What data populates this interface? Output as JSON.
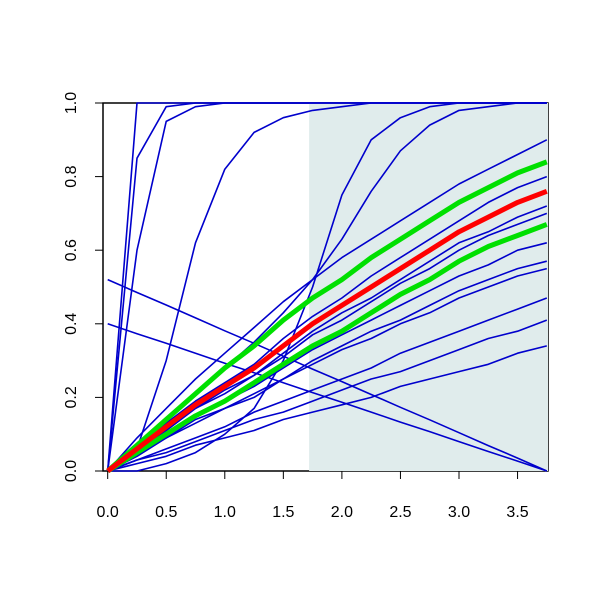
{
  "chart_data": {
    "type": "line",
    "x": [
      0,
      0.25,
      0.5,
      0.75,
      1,
      1.25,
      1.5,
      1.75,
      2,
      2.25,
      2.5,
      2.75,
      3,
      3.25,
      3.5,
      3.75
    ],
    "xlim": [
      -0.04,
      3.76
    ],
    "ylim": [
      0,
      1
    ],
    "xticks": [
      {
        "value": 0,
        "label": "0.0"
      },
      {
        "value": 0.5,
        "label": "0.5"
      },
      {
        "value": 1,
        "label": "1.0"
      },
      {
        "value": 1.5,
        "label": "1.5"
      },
      {
        "value": 2,
        "label": "2.0"
      },
      {
        "value": 2.5,
        "label": "2.5"
      },
      {
        "value": 3,
        "label": "3.0"
      },
      {
        "value": 3.5,
        "label": "3.5"
      }
    ],
    "yticks": [
      {
        "value": 0,
        "label": "0.0"
      },
      {
        "value": 0.2,
        "label": "0.2"
      },
      {
        "value": 0.4,
        "label": "0.4"
      },
      {
        "value": 0.6,
        "label": "0.6"
      },
      {
        "value": 0.8,
        "label": "0.8"
      },
      {
        "value": 1,
        "label": "1.0"
      }
    ],
    "shaded_region": {
      "x": [
        1.72,
        3.76
      ],
      "color": "#e0ecec"
    },
    "base_color": "#0000cc",
    "series": [
      {
        "color": "#0000cc",
        "values": [
          0,
          1,
          1,
          1,
          1,
          1,
          1,
          1,
          1,
          1,
          1,
          1,
          1,
          1,
          1,
          1
        ]
      },
      {
        "color": "#0000cc",
        "values": [
          0,
          0.85,
          0.99,
          1,
          1,
          1,
          1,
          1,
          1,
          1,
          1,
          1,
          1,
          1,
          1,
          1
        ]
      },
      {
        "color": "#0000cc",
        "values": [
          0,
          0.6,
          0.95,
          0.99,
          1,
          1,
          1,
          1,
          1,
          1,
          1,
          1,
          1,
          1,
          1,
          1
        ]
      },
      {
        "color": "#0000cc",
        "values": [
          0,
          0.06,
          0.3,
          0.62,
          0.82,
          0.92,
          0.96,
          0.98,
          0.99,
          1,
          1,
          1,
          1,
          1,
          1,
          1
        ]
      },
      {
        "color": "#0000cc",
        "values": [
          0,
          0.07,
          0.14,
          0.21,
          0.28,
          0.35,
          0.43,
          0.52,
          0.63,
          0.76,
          0.87,
          0.94,
          0.98,
          0.99,
          1,
          1
        ]
      },
      {
        "color": "#0000cc",
        "values": [
          0,
          0,
          0.02,
          0.05,
          0.1,
          0.17,
          0.3,
          0.5,
          0.75,
          0.9,
          0.96,
          0.99,
          1,
          1,
          1,
          1
        ]
      },
      {
        "color": "#0000cc",
        "values": [
          0.52,
          0.485,
          0.451,
          0.416,
          0.381,
          0.347,
          0.312,
          0.277,
          0.243,
          0.208,
          0.173,
          0.139,
          0.104,
          0.069,
          0.035,
          0
        ]
      },
      {
        "color": "#0000cc",
        "values": [
          0.4,
          0.373,
          0.347,
          0.32,
          0.293,
          0.267,
          0.24,
          0.213,
          0.187,
          0.16,
          0.133,
          0.107,
          0.08,
          0.053,
          0.027,
          0
        ]
      },
      {
        "color": "#0000cc",
        "values": [
          0,
          0.09,
          0.17,
          0.25,
          0.32,
          0.39,
          0.46,
          0.52,
          0.58,
          0.63,
          0.68,
          0.73,
          0.78,
          0.82,
          0.86,
          0.9
        ]
      },
      {
        "color": "#0000cc",
        "values": [
          0,
          0.06,
          0.13,
          0.19,
          0.24,
          0.29,
          0.36,
          0.42,
          0.47,
          0.53,
          0.58,
          0.63,
          0.68,
          0.73,
          0.77,
          0.8
        ]
      },
      {
        "color": "#0000cc",
        "values": [
          0,
          0.06,
          0.11,
          0.17,
          0.22,
          0.26,
          0.32,
          0.38,
          0.43,
          0.47,
          0.52,
          0.57,
          0.62,
          0.65,
          0.69,
          0.72
        ]
      },
      {
        "color": "#0000cc",
        "values": [
          0,
          0.06,
          0.11,
          0.17,
          0.21,
          0.26,
          0.31,
          0.37,
          0.41,
          0.46,
          0.51,
          0.55,
          0.6,
          0.64,
          0.67,
          0.7
        ]
      },
      {
        "color": "#0000cc",
        "values": [
          0,
          0.05,
          0.1,
          0.15,
          0.19,
          0.23,
          0.28,
          0.33,
          0.37,
          0.41,
          0.45,
          0.49,
          0.53,
          0.56,
          0.6,
          0.62
        ]
      },
      {
        "color": "#0000cc",
        "values": [
          0,
          0.05,
          0.09,
          0.14,
          0.17,
          0.21,
          0.25,
          0.3,
          0.34,
          0.38,
          0.41,
          0.45,
          0.49,
          0.52,
          0.55,
          0.57
        ]
      },
      {
        "color": "#0000cc",
        "values": [
          0,
          0.04,
          0.09,
          0.13,
          0.17,
          0.2,
          0.25,
          0.29,
          0.33,
          0.36,
          0.4,
          0.43,
          0.47,
          0.5,
          0.53,
          0.55
        ]
      },
      {
        "color": "#0000cc",
        "values": [
          0,
          0.03,
          0.06,
          0.09,
          0.12,
          0.16,
          0.19,
          0.22,
          0.25,
          0.28,
          0.32,
          0.35,
          0.38,
          0.41,
          0.44,
          0.47
        ]
      },
      {
        "color": "#0000cc",
        "values": [
          0,
          0.03,
          0.05,
          0.08,
          0.11,
          0.14,
          0.16,
          0.19,
          0.22,
          0.25,
          0.27,
          0.3,
          0.33,
          0.36,
          0.38,
          0.41
        ]
      },
      {
        "color": "#0000cc",
        "values": [
          0,
          0.02,
          0.04,
          0.07,
          0.09,
          0.11,
          0.14,
          0.16,
          0.18,
          0.2,
          0.23,
          0.25,
          0.27,
          0.29,
          0.32,
          0.34
        ]
      },
      {
        "color": "#00e000",
        "values": [
          0,
          0.07,
          0.14,
          0.21,
          0.28,
          0.34,
          0.41,
          0.47,
          0.52,
          0.58,
          0.63,
          0.68,
          0.73,
          0.77,
          0.81,
          0.84
        ]
      },
      {
        "color": "#00e000",
        "values": [
          0,
          0.05,
          0.1,
          0.15,
          0.19,
          0.24,
          0.29,
          0.34,
          0.38,
          0.43,
          0.48,
          0.52,
          0.57,
          0.61,
          0.64,
          0.67
        ]
      },
      {
        "color": "#ff0000",
        "values": [
          0,
          0.06,
          0.12,
          0.18,
          0.23,
          0.28,
          0.34,
          0.4,
          0.45,
          0.5,
          0.55,
          0.6,
          0.65,
          0.69,
          0.73,
          0.76
        ]
      }
    ]
  }
}
